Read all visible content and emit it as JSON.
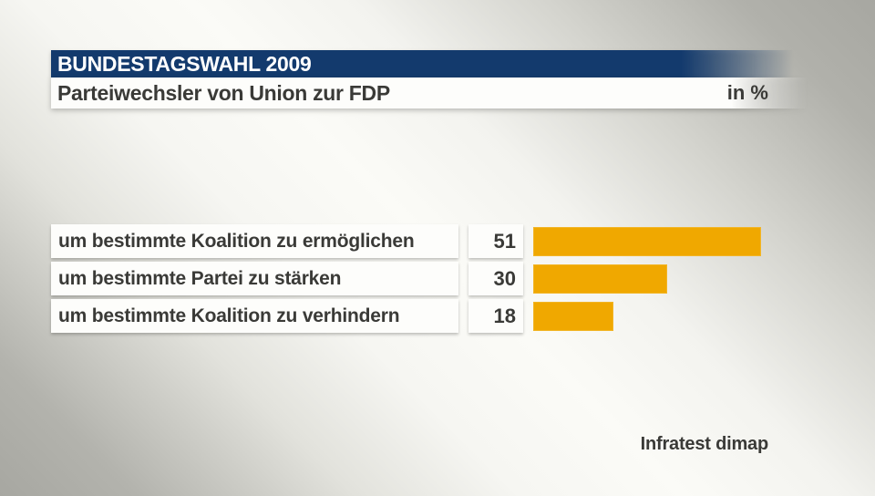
{
  "header": {
    "title": "BUNDESTAGSWAHL 2009",
    "subtitle": "Parteiwechsler von Union zur FDP",
    "unit_label": "in %"
  },
  "source_label": "Infratest dimap",
  "colors": {
    "header_blue": "#133a6d",
    "bar_orange": "#f0a800",
    "text_dark": "#3a3a37",
    "box_white": "#fdfdfb"
  },
  "chart_data": {
    "type": "bar",
    "orientation": "horizontal",
    "title": "Parteiwechsler von Union zur FDP",
    "context_title": "BUNDESTAGSWAHL 2009",
    "unit": "%",
    "categories": [
      "um bestimmte Koalition zu ermöglichen",
      "um bestimmte Partei zu stärken",
      "um bestimmte Koalition zu verhindern"
    ],
    "values": [
      51,
      30,
      18
    ],
    "xlim": [
      0,
      55
    ],
    "grid": false,
    "legend": false,
    "value_labels": "boxes left of bars",
    "source": "Infratest dimap"
  }
}
